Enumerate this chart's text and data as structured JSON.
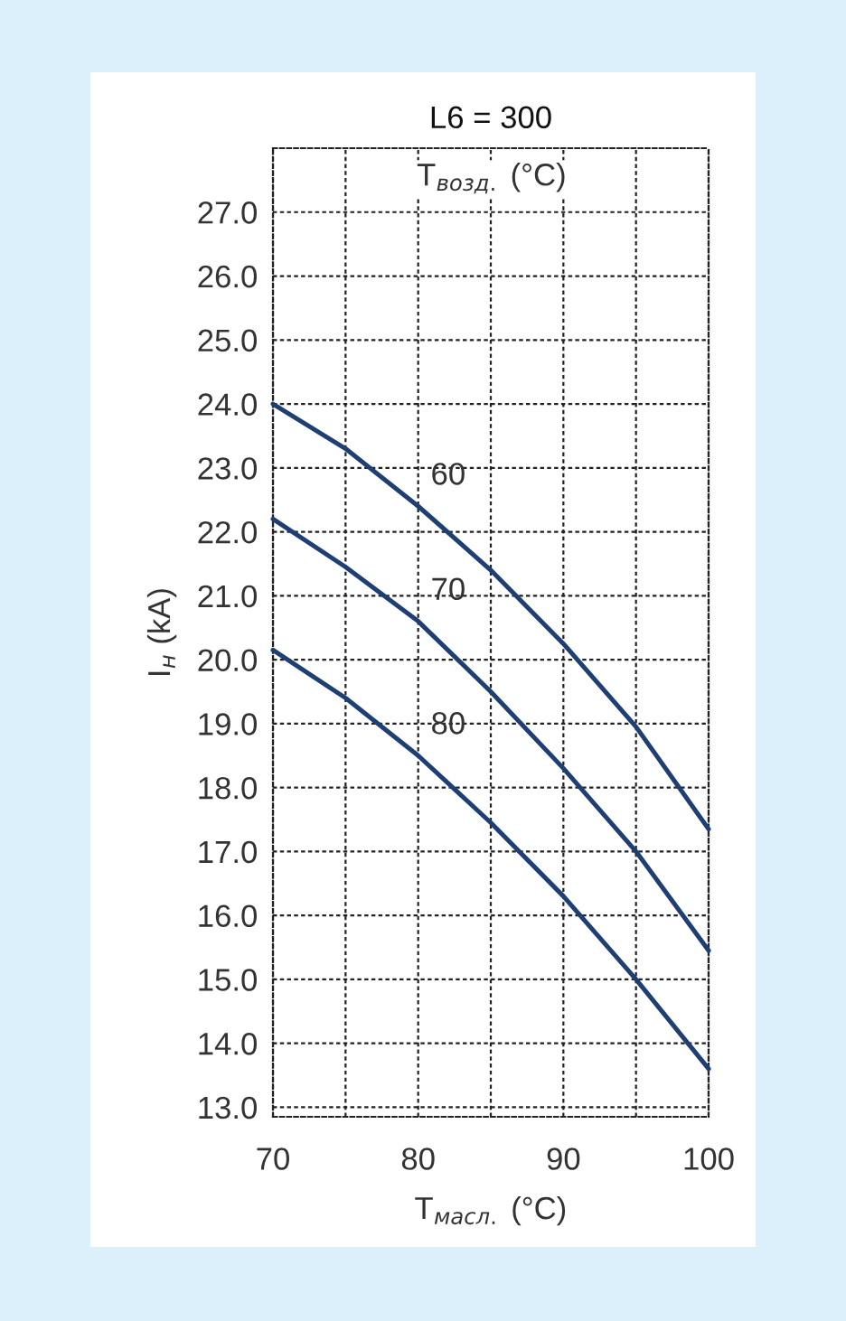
{
  "chart_data": {
    "type": "line",
    "title": "L6 = 300",
    "xlabel": "T$_{масл.}$ (°C)",
    "ylabel": "I$_{н}$ (kA)",
    "annotations": [
      "T$_{возд.}$ (°C)"
    ],
    "x": [
      70,
      75,
      80,
      85,
      90,
      95,
      100
    ],
    "series": [
      {
        "name": "60",
        "color": "#1f3f73",
        "values": [
          24.0,
          23.3,
          22.4,
          21.4,
          20.25,
          18.95,
          17.35
        ]
      },
      {
        "name": "70",
        "color": "#1f3f73",
        "values": [
          22.2,
          21.45,
          20.6,
          19.5,
          18.3,
          17.0,
          15.45
        ]
      },
      {
        "name": "80",
        "color": "#1f3f73",
        "values": [
          20.15,
          19.4,
          18.5,
          17.45,
          16.3,
          15.0,
          13.6
        ]
      }
    ],
    "xlim": [
      70,
      100
    ],
    "ylim": [
      12.85,
      28
    ],
    "xticks": [
      70,
      {
        "value": 75,
        "label": null
      },
      80,
      {
        "value": 85,
        "label": null
      },
      90,
      {
        "value": 95,
        "label": null
      },
      100
    ],
    "yticks": [
      {
        "value": 13,
        "label": "13.0"
      },
      {
        "value": 14,
        "label": "14.0"
      },
      {
        "value": 15,
        "label": "15.0"
      },
      {
        "value": 16,
        "label": "16.0"
      },
      {
        "value": 17,
        "label": "17.0"
      },
      {
        "value": 18,
        "label": "18.0"
      },
      {
        "value": 19,
        "label": "19.0"
      },
      {
        "value": 20,
        "label": "20.0"
      },
      {
        "value": 21,
        "label": "21.0"
      },
      {
        "value": 22,
        "label": "22.0"
      },
      {
        "value": 23,
        "label": "23.0"
      },
      {
        "value": 24,
        "label": "24.0"
      },
      {
        "value": 25,
        "label": "25.0"
      },
      {
        "value": 26,
        "label": "26.0"
      },
      {
        "value": 27,
        "label": "27.0"
      },
      {
        "value": 28,
        "label": null
      }
    ],
    "grid": true,
    "legend": false,
    "marker": "none",
    "line_style": "solid"
  }
}
